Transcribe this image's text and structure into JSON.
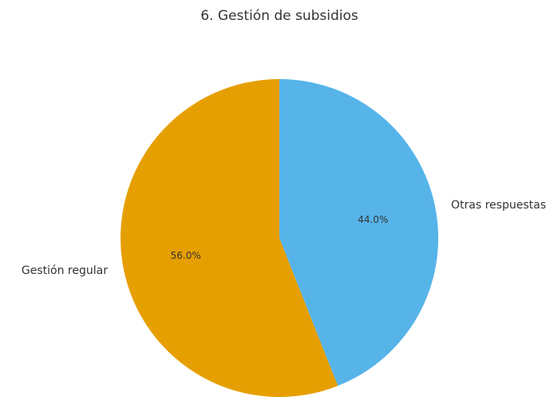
{
  "chart_data": {
    "type": "pie",
    "title": "6. Gestión de subsidios",
    "categories": [
      "Gestión regular",
      "Otras respuestas"
    ],
    "values": [
      56,
      44
    ],
    "value_labels": [
      "56.0%",
      "44.0%"
    ],
    "colors": [
      "#E69F00",
      "#56B4E9"
    ],
    "start_angle": 90,
    "counterclock": true
  }
}
